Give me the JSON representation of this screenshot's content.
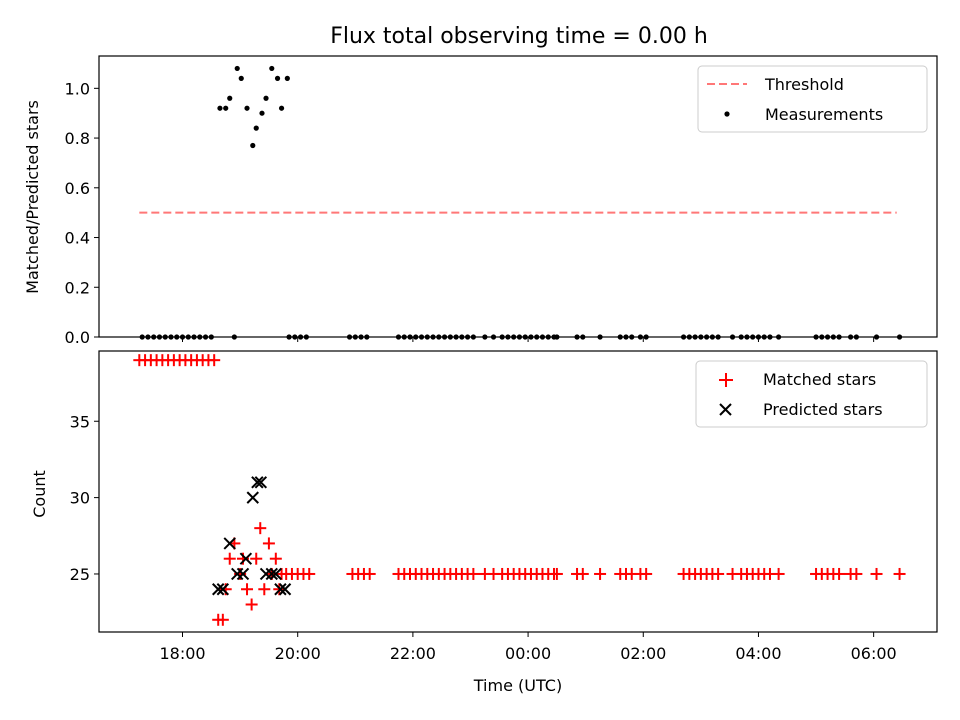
{
  "chart_data": [
    {
      "type": "scatter",
      "title": "Flux total observing time = 0.00 h",
      "xlabel": "",
      "ylabel": "Matched/Predicted stars",
      "ylim": [
        0,
        1.13
      ],
      "yticks": [
        "0.0",
        "0.2",
        "0.4",
        "0.6",
        "0.8",
        "1.0"
      ],
      "ytick_values": [
        0,
        0.2,
        0.4,
        0.6,
        0.8,
        1.0
      ],
      "legend_position": "top-right",
      "threshold": {
        "name": "Threshold",
        "y": 0.5,
        "x_range": [
          17.25,
          30.4
        ],
        "color": "#ff7777"
      },
      "series": [
        {
          "name": "Measurements",
          "color": "#000000",
          "points": [
            [
              18.65,
              0.92
            ],
            [
              18.75,
              0.92
            ],
            [
              18.82,
              0.96
            ],
            [
              18.95,
              1.08
            ],
            [
              19.02,
              1.04
            ],
            [
              19.12,
              0.92
            ],
            [
              19.22,
              0.77
            ],
            [
              19.28,
              0.84
            ],
            [
              19.38,
              0.9
            ],
            [
              19.45,
              0.96
            ],
            [
              19.55,
              1.08
            ],
            [
              19.65,
              1.04
            ],
            [
              19.72,
              0.92
            ],
            [
              19.82,
              1.04
            ],
            [
              17.3,
              0
            ],
            [
              17.4,
              0
            ],
            [
              17.5,
              0
            ],
            [
              17.6,
              0
            ],
            [
              17.7,
              0
            ],
            [
              17.8,
              0
            ],
            [
              17.9,
              0
            ],
            [
              18.0,
              0
            ],
            [
              18.1,
              0
            ],
            [
              18.2,
              0
            ],
            [
              18.3,
              0
            ],
            [
              18.4,
              0
            ],
            [
              18.5,
              0
            ],
            [
              18.9,
              0
            ],
            [
              19.85,
              0
            ],
            [
              19.95,
              0
            ],
            [
              20.05,
              0
            ],
            [
              20.15,
              0
            ],
            [
              20.9,
              0
            ],
            [
              21.0,
              0
            ],
            [
              21.1,
              0
            ],
            [
              21.2,
              0
            ],
            [
              21.75,
              0
            ],
            [
              21.85,
              0
            ],
            [
              21.95,
              0
            ],
            [
              22.05,
              0
            ],
            [
              22.15,
              0
            ],
            [
              22.25,
              0
            ],
            [
              22.35,
              0
            ],
            [
              22.45,
              0
            ],
            [
              22.55,
              0
            ],
            [
              22.65,
              0
            ],
            [
              22.75,
              0
            ],
            [
              22.85,
              0
            ],
            [
              22.95,
              0
            ],
            [
              23.05,
              0
            ],
            [
              23.25,
              0
            ],
            [
              23.4,
              0
            ],
            [
              23.55,
              0
            ],
            [
              23.65,
              0
            ],
            [
              23.75,
              0
            ],
            [
              23.85,
              0
            ],
            [
              23.95,
              0
            ],
            [
              24.05,
              0
            ],
            [
              24.15,
              0
            ],
            [
              24.25,
              0
            ],
            [
              24.35,
              0
            ],
            [
              24.45,
              0
            ],
            [
              24.5,
              0
            ],
            [
              24.85,
              0
            ],
            [
              24.95,
              0
            ],
            [
              25.25,
              0
            ],
            [
              25.6,
              0
            ],
            [
              25.7,
              0
            ],
            [
              25.8,
              0
            ],
            [
              25.95,
              0
            ],
            [
              26.05,
              0
            ],
            [
              26.7,
              0
            ],
            [
              26.8,
              0
            ],
            [
              26.9,
              0
            ],
            [
              27.0,
              0
            ],
            [
              27.1,
              0
            ],
            [
              27.2,
              0
            ],
            [
              27.3,
              0
            ],
            [
              27.55,
              0
            ],
            [
              27.7,
              0
            ],
            [
              27.8,
              0
            ],
            [
              27.9,
              0
            ],
            [
              28.0,
              0
            ],
            [
              28.1,
              0
            ],
            [
              28.2,
              0
            ],
            [
              28.35,
              0
            ],
            [
              29.0,
              0
            ],
            [
              29.1,
              0
            ],
            [
              29.2,
              0
            ],
            [
              29.3,
              0
            ],
            [
              29.4,
              0
            ],
            [
              29.6,
              0
            ],
            [
              29.7,
              0
            ],
            [
              30.05,
              0
            ],
            [
              30.45,
              0
            ]
          ]
        }
      ]
    },
    {
      "type": "scatter",
      "title": "",
      "xlabel": "Time (UTC)",
      "ylabel": "Count",
      "ylim": [
        21.2,
        39.6
      ],
      "yticks": [
        "25",
        "30",
        "35"
      ],
      "ytick_values": [
        25,
        30,
        35
      ],
      "xlim": [
        16.55,
        31.1
      ],
      "xticks": [
        "18:00",
        "20:00",
        "22:00",
        "00:00",
        "02:00",
        "04:00",
        "06:00"
      ],
      "xtick_values": [
        18,
        20,
        22,
        24,
        26,
        28,
        30
      ],
      "legend_position": "top-right",
      "series": [
        {
          "name": "Matched stars",
          "marker": "plus",
          "color": "#ff0000",
          "points": [
            [
              17.25,
              39
            ],
            [
              17.35,
              39
            ],
            [
              17.45,
              39
            ],
            [
              17.55,
              39
            ],
            [
              17.65,
              39
            ],
            [
              17.75,
              39
            ],
            [
              17.85,
              39
            ],
            [
              17.95,
              39
            ],
            [
              18.05,
              39
            ],
            [
              18.15,
              39
            ],
            [
              18.25,
              39
            ],
            [
              18.35,
              39
            ],
            [
              18.45,
              39
            ],
            [
              18.55,
              39
            ],
            [
              18.62,
              22
            ],
            [
              18.7,
              22
            ],
            [
              18.75,
              24
            ],
            [
              18.82,
              26
            ],
            [
              18.9,
              27
            ],
            [
              19.0,
              25
            ],
            [
              19.05,
              26
            ],
            [
              19.12,
              24
            ],
            [
              19.2,
              23
            ],
            [
              19.28,
              26
            ],
            [
              19.35,
              28
            ],
            [
              19.42,
              24
            ],
            [
              19.5,
              27
            ],
            [
              19.55,
              25
            ],
            [
              19.62,
              26
            ],
            [
              19.68,
              24
            ],
            [
              19.72,
              25
            ],
            [
              19.8,
              25
            ],
            [
              19.9,
              25
            ],
            [
              20.0,
              25
            ],
            [
              20.1,
              25
            ],
            [
              20.2,
              25
            ],
            [
              20.95,
              25
            ],
            [
              21.05,
              25
            ],
            [
              21.15,
              25
            ],
            [
              21.25,
              25
            ],
            [
              21.75,
              25
            ],
            [
              21.85,
              25
            ],
            [
              21.95,
              25
            ],
            [
              22.05,
              25
            ],
            [
              22.15,
              25
            ],
            [
              22.25,
              25
            ],
            [
              22.35,
              25
            ],
            [
              22.45,
              25
            ],
            [
              22.55,
              25
            ],
            [
              22.65,
              25
            ],
            [
              22.75,
              25
            ],
            [
              22.85,
              25
            ],
            [
              22.95,
              25
            ],
            [
              23.05,
              25
            ],
            [
              23.25,
              25
            ],
            [
              23.4,
              25
            ],
            [
              23.55,
              25
            ],
            [
              23.65,
              25
            ],
            [
              23.75,
              25
            ],
            [
              23.85,
              25
            ],
            [
              23.95,
              25
            ],
            [
              24.05,
              25
            ],
            [
              24.15,
              25
            ],
            [
              24.25,
              25
            ],
            [
              24.35,
              25
            ],
            [
              24.45,
              25
            ],
            [
              24.5,
              25
            ],
            [
              24.85,
              25
            ],
            [
              24.95,
              25
            ],
            [
              25.25,
              25
            ],
            [
              25.6,
              25
            ],
            [
              25.7,
              25
            ],
            [
              25.8,
              25
            ],
            [
              25.95,
              25
            ],
            [
              26.05,
              25
            ],
            [
              26.7,
              25
            ],
            [
              26.8,
              25
            ],
            [
              26.9,
              25
            ],
            [
              27.0,
              25
            ],
            [
              27.1,
              25
            ],
            [
              27.2,
              25
            ],
            [
              27.3,
              25
            ],
            [
              27.55,
              25
            ],
            [
              27.7,
              25
            ],
            [
              27.8,
              25
            ],
            [
              27.9,
              25
            ],
            [
              28.0,
              25
            ],
            [
              28.1,
              25
            ],
            [
              28.2,
              25
            ],
            [
              28.35,
              25
            ],
            [
              29.0,
              25
            ],
            [
              29.1,
              25
            ],
            [
              29.2,
              25
            ],
            [
              29.3,
              25
            ],
            [
              29.4,
              25
            ],
            [
              29.6,
              25
            ],
            [
              29.7,
              25
            ],
            [
              30.05,
              25
            ],
            [
              30.45,
              25
            ]
          ]
        },
        {
          "name": "Predicted stars",
          "marker": "x",
          "color": "#000000",
          "points": [
            [
              18.62,
              24
            ],
            [
              18.7,
              24
            ],
            [
              18.82,
              27
            ],
            [
              18.95,
              25
            ],
            [
              19.05,
              25
            ],
            [
              19.1,
              26
            ],
            [
              19.22,
              30
            ],
            [
              19.3,
              31
            ],
            [
              19.36,
              31
            ],
            [
              19.45,
              25
            ],
            [
              19.55,
              25
            ],
            [
              19.62,
              25
            ],
            [
              19.7,
              24
            ],
            [
              19.78,
              24
            ]
          ]
        }
      ]
    }
  ]
}
